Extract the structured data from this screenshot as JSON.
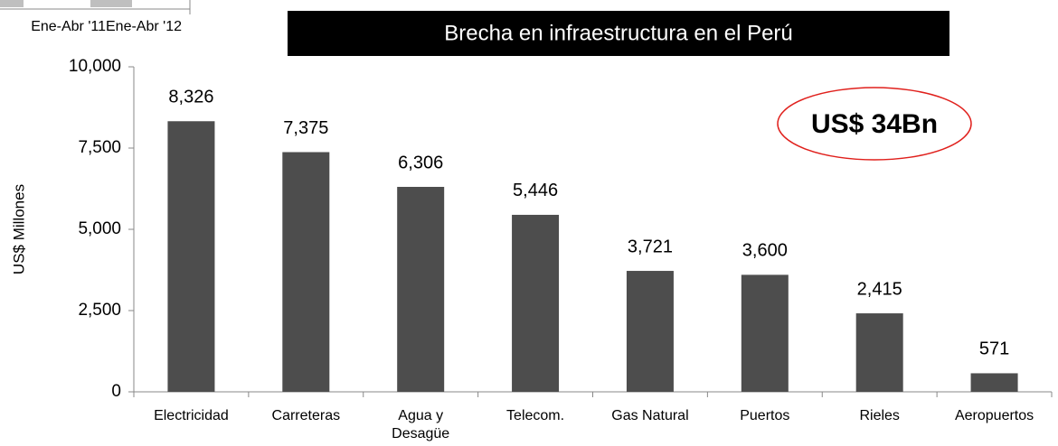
{
  "chart_data": {
    "type": "bar",
    "title": "Brecha en infraestructura en el Perú",
    "y_label": "US$ Millones",
    "annotation": "US$ 34Bn",
    "fragment_labels": [
      "Ene-Abr '11",
      "Ene-Abr '12"
    ],
    "categories": [
      "Electricidad",
      "Carreteras",
      "Agua y\nDesagüe",
      "Telecom.",
      "Gas Natural",
      "Puertos",
      "Rieles",
      "Aeropuertos"
    ],
    "values": [
      8326,
      7375,
      6306,
      5446,
      3721,
      3600,
      2415,
      571
    ],
    "value_labels": [
      "8,326",
      "7,375",
      "6,306",
      "5,446",
      "3,721",
      "3,600",
      "2,415",
      "571"
    ],
    "color": "#4d4d4d",
    "ylim": [
      0,
      10000
    ],
    "yticks": [
      0,
      {
        "value": 2500,
        "label": "2,500"
      },
      {
        "value": 5000,
        "label": "5,000"
      },
      {
        "value": 7500,
        "label": "7,500"
      },
      {
        "value": 10000,
        "label": "10,000"
      }
    ],
    "grid": false
  }
}
